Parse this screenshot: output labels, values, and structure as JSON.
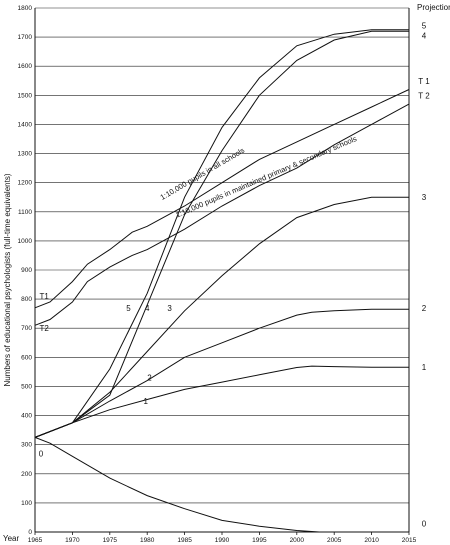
{
  "chart_data": {
    "type": "line",
    "title": "",
    "ylabel": "Numbers of educational psychologists  (full-time equivalents)",
    "xlabel": "Year",
    "projection_label": "Projection",
    "xlim": [
      1965,
      2015
    ],
    "ylim": [
      0,
      1800
    ],
    "x_ticks": [
      "1965",
      "1970",
      "1975",
      "1980",
      "1985",
      "1990",
      "1995",
      "2000",
      "2005",
      "2010",
      "2015"
    ],
    "y_ticks": [
      "0",
      "100",
      "200",
      "300",
      "400",
      "500",
      "600",
      "700",
      "800",
      "900",
      "1000",
      "1100",
      "1200",
      "1300",
      "1400",
      "1500",
      "1600",
      "1700",
      "1800"
    ],
    "grid": "horizontal",
    "annotations": [
      {
        "text": "1:10,000 pupils in all schools",
        "x": 1982,
        "y": 1140,
        "x2": 1992,
        "y2": 1290
      },
      {
        "text": "1:10,000 pupils in maintained primary & secondary schools",
        "x": 1984,
        "y": 1080,
        "x2": 2004,
        "y2": 1300
      }
    ],
    "series": [
      {
        "name": "0",
        "label_left": "0",
        "label_right": "0",
        "x": [
          1965,
          1967,
          1970,
          1975,
          1980,
          1985,
          1990,
          1995,
          2000,
          2003
        ],
        "y": [
          325,
          305,
          260,
          185,
          125,
          80,
          40,
          20,
          5,
          0
        ]
      },
      {
        "name": "1",
        "label_left": "1",
        "label_right": "1",
        "x": [
          1965,
          1970,
          1975,
          1980,
          1985,
          1990,
          1995,
          2000,
          2002,
          2005,
          2010,
          2015
        ],
        "y": [
          325,
          375,
          420,
          455,
          490,
          515,
          540,
          565,
          570,
          568,
          566,
          566
        ]
      },
      {
        "name": "2",
        "label_left": "2",
        "label_right": "2",
        "x": [
          1965,
          1970,
          1975,
          1980,
          1985,
          1990,
          1995,
          2000,
          2002,
          2005,
          2010,
          2015
        ],
        "y": [
          325,
          375,
          450,
          520,
          600,
          650,
          700,
          745,
          755,
          760,
          765,
          765
        ]
      },
      {
        "name": "3",
        "label_left": "3",
        "label_right": "3",
        "x": [
          1965,
          1970,
          1975,
          1980,
          1985,
          1990,
          1995,
          2000,
          2005,
          2010,
          2015
        ],
        "y": [
          325,
          375,
          480,
          620,
          760,
          880,
          990,
          1080,
          1125,
          1150,
          1150
        ]
      },
      {
        "name": "4",
        "label_left": "4",
        "label_right": "4",
        "x": [
          1965,
          1970,
          1975,
          1980,
          1985,
          1990,
          1995,
          2000,
          2005,
          2010,
          2015
        ],
        "y": [
          325,
          375,
          470,
          780,
          1090,
          1310,
          1500,
          1620,
          1690,
          1720,
          1720
        ]
      },
      {
        "name": "5",
        "label_left": "5",
        "label_right": "5",
        "x": [
          1965,
          1970,
          1975,
          1980,
          1985,
          1990,
          1995,
          2000,
          2005,
          2010,
          2015
        ],
        "y": [
          325,
          375,
          560,
          820,
          1150,
          1390,
          1560,
          1670,
          1710,
          1725,
          1725
        ]
      },
      {
        "name": "T1",
        "label_left": "T1",
        "label_right": "T 1",
        "x": [
          1965,
          1967,
          1970,
          1972,
          1975,
          1978,
          1980,
          1985,
          1990,
          1995,
          2000,
          2005,
          2010,
          2015
        ],
        "y": [
          770,
          790,
          860,
          920,
          970,
          1030,
          1050,
          1120,
          1200,
          1280,
          1340,
          1400,
          1460,
          1520
        ]
      },
      {
        "name": "T2",
        "label_left": "T2",
        "label_right": "T 2",
        "x": [
          1965,
          1967,
          1970,
          1972,
          1975,
          1978,
          1980,
          1985,
          1990,
          1995,
          2000,
          2005,
          2010,
          2015
        ],
        "y": [
          710,
          730,
          790,
          860,
          910,
          950,
          970,
          1040,
          1120,
          1190,
          1250,
          1330,
          1400,
          1470
        ]
      }
    ]
  }
}
